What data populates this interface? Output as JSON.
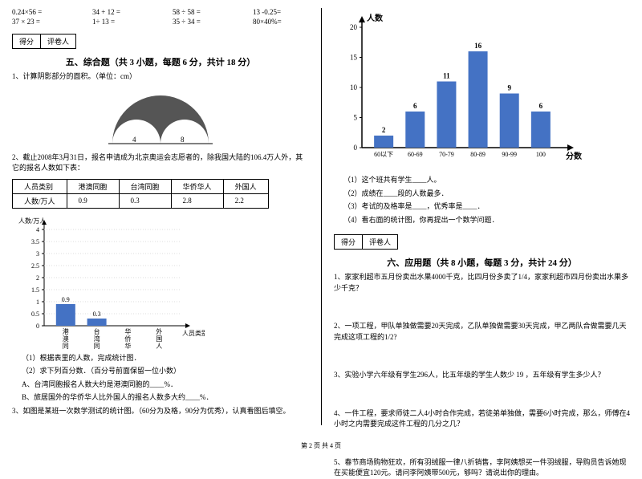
{
  "left": {
    "equations": [
      [
        "0.24×56 =",
        "34 + 12 =",
        "58 ÷ 58 =",
        "13 -0.25="
      ],
      [
        "37 × 23 =",
        "1÷ 13 =",
        "35 ÷ 34 =",
        "80×40%="
      ]
    ],
    "score_labels": [
      "得分",
      "评卷人"
    ],
    "section5_title": "五、综合题（共 3 小题，每题 6 分，共计 18 分）",
    "q1": "1、计算阴影部分的面积。（单位：cm）",
    "arch": {
      "left_label": "4",
      "right_label": "8",
      "fill": "#333333",
      "stroke": "#000000"
    },
    "q2": "2、截止2008年3月31日，报名申请成为北京奥运会志愿者的，除我国大陆的106.4万人外，其它的报名人数如下表：",
    "table": {
      "headers": [
        "人员类别",
        "港澳同胞",
        "台湾同胞",
        "华侨华人",
        "外国人"
      ],
      "row_label": "人数/万人",
      "values": [
        "0.9",
        "0.3",
        "2.8",
        "2.2"
      ]
    },
    "chart1": {
      "ylabel": "人数/万人",
      "xlabel": "人员类别",
      "yticks": [
        "0",
        "0.5",
        "1",
        "1.5",
        "2",
        "2.5",
        "3",
        "3.5",
        "4"
      ],
      "categories": [
        "港澳同胞",
        "台湾同胞",
        "华侨华人",
        "外国人"
      ],
      "values": [
        0.9,
        0.3,
        null,
        null
      ],
      "value_labels": [
        "0.9",
        "0.3",
        "",
        ""
      ],
      "bar_color": "#4472c4",
      "axis_color": "#000000",
      "ymax": 4
    },
    "sub_q": [
      "（1）根据表里的人数，完成统计图．",
      "（2）求下列百分数．（百分号前面保留一位小数）",
      "A、台湾同胞报名人数大约是港澳同胞的____%．",
      "B、旅居国外的华侨华人比外国人的报名人数多大约____%．"
    ],
    "q3": "3、如图是某班一次数学测试的统计图。（60分为及格，90分为优秀），认真看图后填空。"
  },
  "right": {
    "chart2": {
      "ylabel": "人数",
      "xlabel": "分数",
      "categories": [
        "60以下",
        "60-69",
        "70-79",
        "80-89",
        "90-99",
        "100"
      ],
      "values": [
        2,
        6,
        11,
        16,
        9,
        6
      ],
      "yticks": [
        "0",
        "5",
        "10",
        "15",
        "20"
      ],
      "ymax": 20,
      "bar_color": "#4472c4",
      "axis_color": "#000000"
    },
    "sub_q": [
      "（1）这个班共有学生____人。",
      "（2）成绩在____段的人数最多．",
      "（3）考试的及格率是____，优秀率是____．",
      "（4）看右面的统计图，你再提出一个数学问题．"
    ],
    "score_labels": [
      "得分",
      "评卷人"
    ],
    "section6_title": "六、应用题（共 8 小题，每题 3 分，共计 24 分）",
    "apps": [
      "1、家家利超市五月份卖出水果4000千克，比四月份多卖了1/4，家家利超市四月份卖出水果多少千克？",
      "2、一项工程，甲队单独做需要20天完成，乙队单独做需要30天完成，甲乙两队合做需要几天完成这项工程的1/2?",
      "3、实验小学六年级有学生296人，比五年级的学生人数少 19 ，五年级有学生多少人？",
      "4、一件工程，要求师徒二人4小时合作完成，若徒弟单独做，需要6小时完成，那么，师傅在4小时之内需要完成这件工程的几分之几？",
      "5、春节商场购物狂欢，所有羽绒服一律八折销售，李阿姨想买一件羽绒服，导购员告诉她现在买能便宜120元。请问李阿姨带500元，够吗？请说出你的理由。"
    ]
  },
  "footer": "第 2 页 共 4 页"
}
